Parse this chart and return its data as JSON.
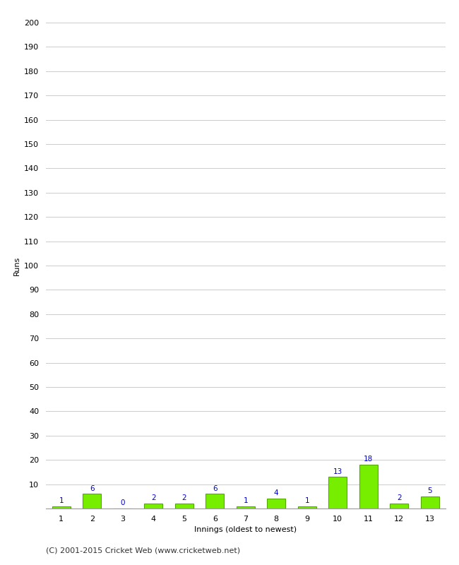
{
  "xlabel": "Innings (oldest to newest)",
  "ylabel": "Runs",
  "categories": [
    1,
    2,
    3,
    4,
    5,
    6,
    7,
    8,
    9,
    10,
    11,
    12,
    13
  ],
  "values": [
    1,
    6,
    0,
    2,
    2,
    6,
    1,
    4,
    1,
    13,
    18,
    2,
    5
  ],
  "bar_color": "#77ee00",
  "bar_edge_color": "#55aa00",
  "label_color": "#0000cc",
  "ylim": [
    0,
    200
  ],
  "yticks": [
    0,
    10,
    20,
    30,
    40,
    50,
    60,
    70,
    80,
    90,
    100,
    110,
    120,
    130,
    140,
    150,
    160,
    170,
    180,
    190,
    200
  ],
  "background_color": "#ffffff",
  "grid_color": "#cccccc",
  "footer": "(C) 2001-2015 Cricket Web (www.cricketweb.net)",
  "label_fontsize": 7.5,
  "axis_fontsize": 8,
  "ylabel_fontsize": 8,
  "footer_fontsize": 8
}
